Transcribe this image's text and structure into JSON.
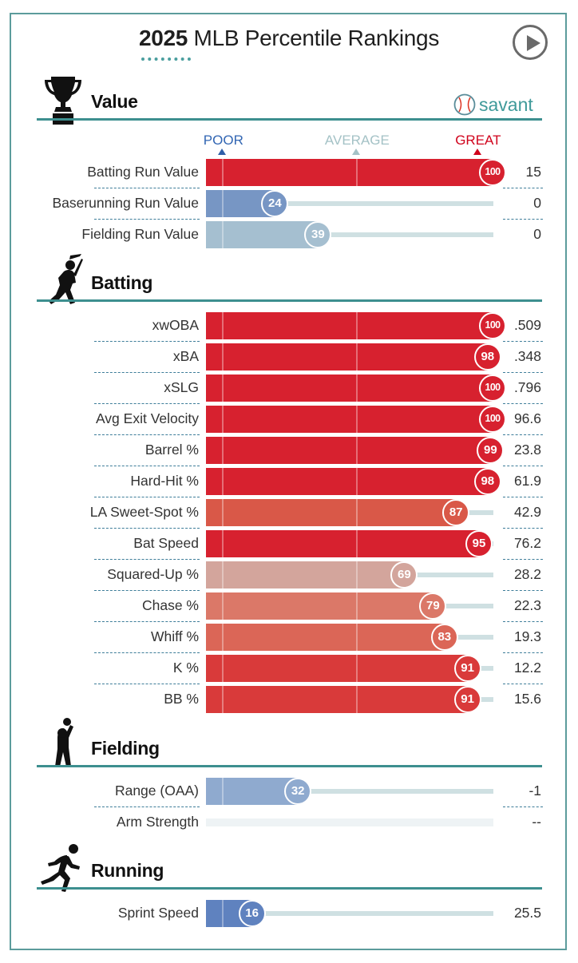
{
  "header": {
    "title_year": "2025",
    "title_rest": " MLB Percentile Rankings",
    "brand": "savant"
  },
  "scale": {
    "poor": "POOR",
    "average": "AVERAGE",
    "great": "GREAT"
  },
  "colors": {
    "poor": "#3266b3",
    "average": "#a4c2c6",
    "great": "#d0021b",
    "teal": "#3d8f8f"
  },
  "chart_data": {
    "type": "bar",
    "xlim": [
      0,
      100
    ],
    "sections": [
      {
        "name": "Value",
        "icon": "trophy-icon",
        "rows": [
          {
            "label": "Batting Run Value",
            "percentile": 100,
            "value": "15"
          },
          {
            "label": "Baserunning Run Value",
            "percentile": 24,
            "value": "0"
          },
          {
            "label": "Fielding Run Value",
            "percentile": 39,
            "value": "0"
          }
        ]
      },
      {
        "name": "Batting",
        "icon": "batter-icon",
        "rows": [
          {
            "label": "xwOBA",
            "percentile": 100,
            "value": ".509"
          },
          {
            "label": "xBA",
            "percentile": 98,
            "value": ".348"
          },
          {
            "label": "xSLG",
            "percentile": 100,
            "value": ".796"
          },
          {
            "label": "Avg Exit Velocity",
            "percentile": 100,
            "value": "96.6"
          },
          {
            "label": "Barrel %",
            "percentile": 99,
            "value": "23.8"
          },
          {
            "label": "Hard-Hit %",
            "percentile": 98,
            "value": "61.9"
          },
          {
            "label": "LA Sweet-Spot %",
            "percentile": 87,
            "value": "42.9"
          },
          {
            "label": "Bat Speed",
            "percentile": 95,
            "value": "76.2"
          },
          {
            "label": "Squared-Up %",
            "percentile": 69,
            "value": "28.2"
          },
          {
            "label": "Chase %",
            "percentile": 79,
            "value": "22.3"
          },
          {
            "label": "Whiff %",
            "percentile": 83,
            "value": "19.3"
          },
          {
            "label": "K %",
            "percentile": 91,
            "value": "12.2"
          },
          {
            "label": "BB %",
            "percentile": 91,
            "value": "15.6"
          }
        ]
      },
      {
        "name": "Fielding",
        "icon": "fielder-icon",
        "rows": [
          {
            "label": "Range (OAA)",
            "percentile": 32,
            "value": "-1"
          },
          {
            "label": "Arm Strength",
            "percentile": null,
            "value": "--"
          }
        ]
      },
      {
        "name": "Running",
        "icon": "runner-icon",
        "rows": [
          {
            "label": "Sprint Speed",
            "percentile": 16,
            "value": "25.5"
          }
        ]
      }
    ]
  }
}
